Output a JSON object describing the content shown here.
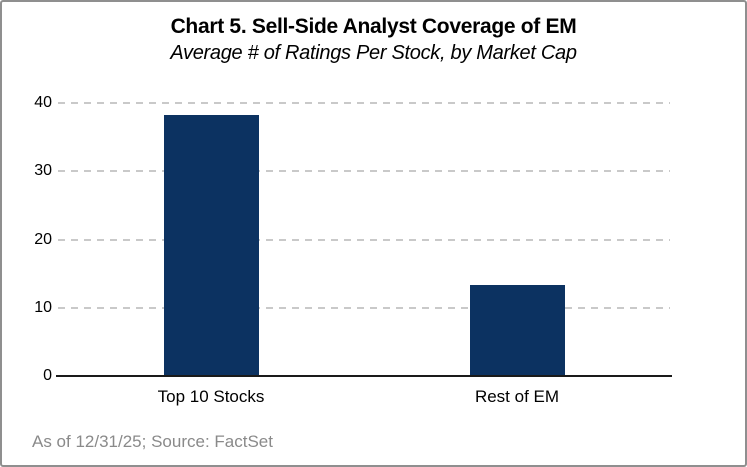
{
  "chart_data": {
    "type": "bar",
    "title": "Chart 5. Sell-Side Analyst Coverage of EM",
    "subtitle": "Average # of Ratings Per Stock, by Market Cap",
    "categories": [
      "Top 10 Stocks",
      "Rest of EM"
    ],
    "values": [
      38.3,
      13.4
    ],
    "xlabel": "",
    "ylabel": "",
    "ylim": [
      0,
      40
    ],
    "yticks": [
      0,
      10,
      20,
      30,
      40
    ],
    "grid": "horizontal-dashed",
    "legend": "none",
    "bar_color": "#0c3261",
    "gridline_color": "#c9c9c9",
    "axis_color": "#1a1a1a",
    "footnote": "As of 12/31/25; Source: FactSet",
    "footnote_color": "#8a8a8a"
  }
}
